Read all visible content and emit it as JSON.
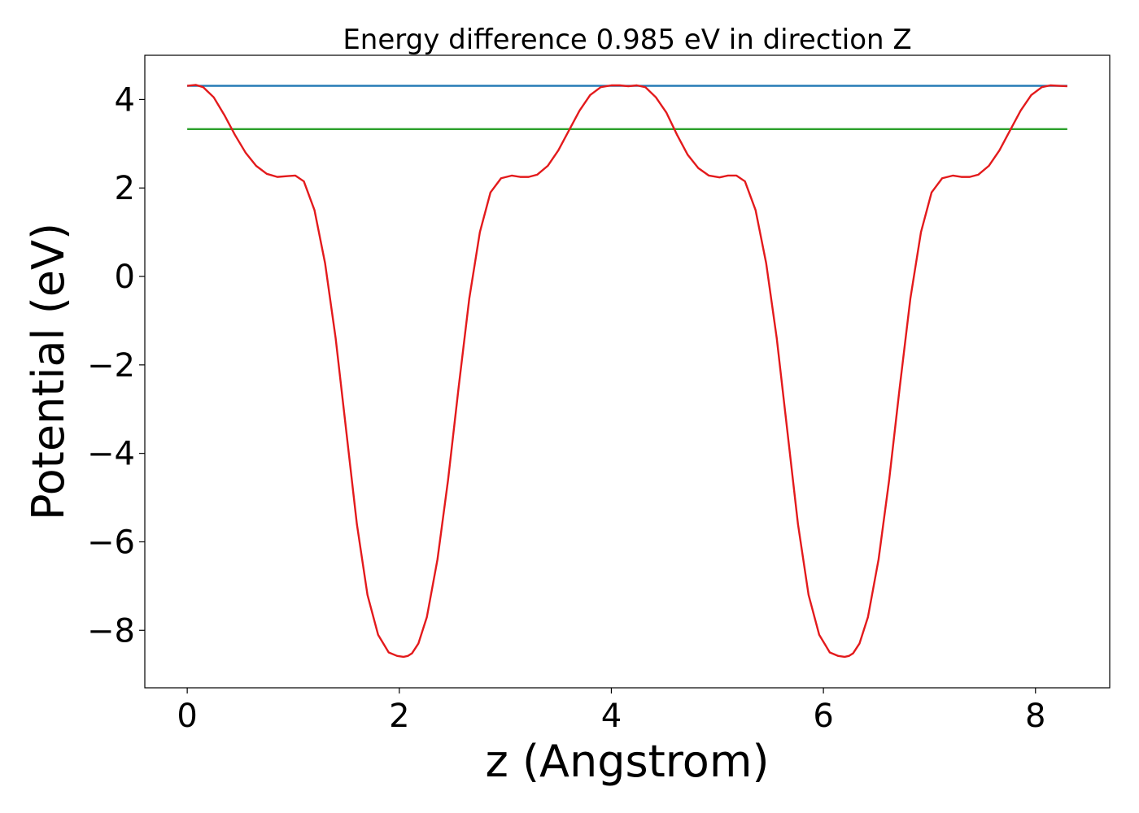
{
  "chart_data": {
    "type": "line",
    "title": "Energy difference 0.985 eV in direction Z",
    "xlabel": "z (Angstrom)",
    "ylabel": "Potential (eV)",
    "xlim": [
      -0.4,
      8.7
    ],
    "ylim": [
      -9.3,
      5.0
    ],
    "xticks": [
      0,
      2,
      4,
      6,
      8
    ],
    "yticks": [
      -8,
      -6,
      -4,
      -2,
      0,
      2,
      4
    ],
    "xtick_labels": [
      "0",
      "2",
      "4",
      "6",
      "8"
    ],
    "ytick_labels": [
      "−8",
      "−6",
      "−4",
      "−2",
      "0",
      "2",
      "4"
    ],
    "grid": false,
    "series": [
      {
        "color": "#1f77b4",
        "x": [
          0,
          8.3
        ],
        "y": [
          4.31,
          4.31
        ]
      },
      {
        "color": "#2ca02c",
        "x": [
          0,
          8.3
        ],
        "y": [
          3.33,
          3.33
        ]
      },
      {
        "color": "#e31a1c",
        "x": [
          0.0,
          0.08,
          0.15,
          0.25,
          0.35,
          0.45,
          0.55,
          0.65,
          0.75,
          0.85,
          0.95,
          1.02,
          1.1,
          1.2,
          1.3,
          1.4,
          1.5,
          1.6,
          1.7,
          1.8,
          1.9,
          1.98,
          2.04,
          2.08,
          2.12,
          2.18,
          2.26,
          2.36,
          2.46,
          2.56,
          2.66,
          2.76,
          2.86,
          2.96,
          3.06,
          3.14,
          3.22,
          3.3,
          3.4,
          3.5,
          3.6,
          3.7,
          3.8,
          3.9,
          4.0,
          4.08,
          4.16,
          4.24,
          4.32,
          4.42,
          4.52,
          4.62,
          4.72,
          4.82,
          4.92,
          5.02,
          5.1,
          5.18,
          5.26,
          5.36,
          5.46,
          5.56,
          5.66,
          5.76,
          5.86,
          5.96,
          6.06,
          6.14,
          6.2,
          6.24,
          6.28,
          6.34,
          6.42,
          6.52,
          6.62,
          6.72,
          6.82,
          6.92,
          7.02,
          7.12,
          7.22,
          7.3,
          7.38,
          7.46,
          7.56,
          7.66,
          7.76,
          7.86,
          7.96,
          8.06,
          8.14,
          8.22,
          8.3
        ],
        "y": [
          4.31,
          4.33,
          4.28,
          4.05,
          3.65,
          3.2,
          2.8,
          2.5,
          2.32,
          2.25,
          2.27,
          2.28,
          2.15,
          1.5,
          0.3,
          -1.4,
          -3.5,
          -5.6,
          -7.2,
          -8.1,
          -8.5,
          -8.58,
          -8.6,
          -8.58,
          -8.52,
          -8.3,
          -7.7,
          -6.4,
          -4.6,
          -2.5,
          -0.5,
          1.0,
          1.9,
          2.22,
          2.28,
          2.25,
          2.25,
          2.3,
          2.5,
          2.85,
          3.3,
          3.75,
          4.1,
          4.28,
          4.32,
          4.32,
          4.3,
          4.32,
          4.28,
          4.05,
          3.7,
          3.2,
          2.75,
          2.45,
          2.28,
          2.24,
          2.28,
          2.28,
          2.15,
          1.5,
          0.3,
          -1.4,
          -3.5,
          -5.6,
          -7.2,
          -8.1,
          -8.5,
          -8.58,
          -8.6,
          -8.58,
          -8.52,
          -8.3,
          -7.7,
          -6.4,
          -4.6,
          -2.5,
          -0.5,
          1.0,
          1.9,
          2.22,
          2.28,
          2.25,
          2.25,
          2.3,
          2.5,
          2.85,
          3.3,
          3.75,
          4.1,
          4.28,
          4.32,
          4.31,
          4.3
        ]
      }
    ]
  }
}
